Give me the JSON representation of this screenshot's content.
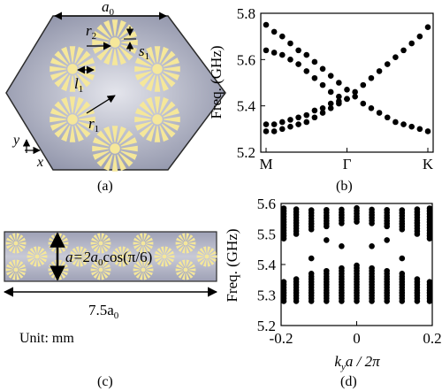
{
  "panel_labels": {
    "a": "(a)",
    "b": "(b)",
    "c": "(c)",
    "d": "(d)"
  },
  "panel_a": {
    "a0": "a",
    "a0_sub": "0",
    "r2": "r",
    "r2_sub": "2",
    "s1": "s",
    "s1_sub": "1",
    "l1": "l",
    "l1_sub": "1",
    "r1": "r",
    "r1_sub": "1",
    "axis_y": "y",
    "axis_x": "x"
  },
  "panel_c": {
    "height_label": "a=2a",
    "height_label_sub": "0",
    "height_label_tail": "cos(π/6)",
    "width_label": "7.5a",
    "width_label_sub": "0",
    "unit": "Unit: mm"
  },
  "colors": {
    "gold": "#f5e79a",
    "gray_dark": "#8e92a8",
    "gray_light": "#dcdde6",
    "dot": "#000000"
  },
  "chart_data": [
    {
      "type": "scatter",
      "panel": "b",
      "ylabel": "Freq. (GHz)",
      "categories": [
        "M",
        "Γ",
        "K"
      ],
      "ylim": [
        5.2,
        5.8
      ],
      "yticks": [
        5.2,
        5.4,
        5.6,
        5.8
      ],
      "ytick_labels": [
        "5.2",
        "5.4",
        "5.6",
        "5.8"
      ],
      "series": [
        {
          "points": [
            [
              0.0,
              5.75
            ],
            [
              0.1,
              5.72
            ],
            [
              0.2,
              5.7
            ],
            [
              0.3,
              5.67
            ],
            [
              0.4,
              5.64
            ],
            [
              0.5,
              5.62
            ],
            [
              0.6,
              5.59
            ],
            [
              0.7,
              5.56
            ],
            [
              0.8,
              5.53
            ],
            [
              0.9,
              5.5
            ],
            [
              1.0,
              5.47
            ],
            [
              1.1,
              5.44
            ],
            [
              1.2,
              5.41
            ],
            [
              1.3,
              5.39
            ],
            [
              1.4,
              5.37
            ],
            [
              1.5,
              5.35
            ],
            [
              1.6,
              5.33
            ],
            [
              1.7,
              5.32
            ],
            [
              1.8,
              5.31
            ],
            [
              1.9,
              5.3
            ],
            [
              2.0,
              5.29
            ]
          ]
        },
        {
          "points": [
            [
              0.0,
              5.64
            ],
            [
              0.1,
              5.63
            ],
            [
              0.2,
              5.62
            ],
            [
              0.3,
              5.6
            ],
            [
              0.4,
              5.58
            ],
            [
              0.5,
              5.55
            ],
            [
              0.6,
              5.52
            ],
            [
              0.7,
              5.49
            ],
            [
              0.8,
              5.46
            ],
            [
              0.9,
              5.44
            ],
            [
              1.0,
              5.43
            ]
          ]
        },
        {
          "points": [
            [
              0.0,
              5.32
            ],
            [
              0.1,
              5.32
            ],
            [
              0.2,
              5.33
            ],
            [
              0.3,
              5.34
            ],
            [
              0.4,
              5.35
            ],
            [
              0.5,
              5.36
            ],
            [
              0.6,
              5.38
            ],
            [
              0.7,
              5.39
            ],
            [
              0.8,
              5.41
            ],
            [
              0.9,
              5.42
            ],
            [
              1.0,
              5.43
            ]
          ]
        },
        {
          "points": [
            [
              0.0,
              5.29
            ],
            [
              0.1,
              5.29
            ],
            [
              0.2,
              5.3
            ],
            [
              0.3,
              5.31
            ],
            [
              0.4,
              5.32
            ],
            [
              0.5,
              5.33
            ],
            [
              0.6,
              5.35
            ],
            [
              0.7,
              5.37
            ],
            [
              0.8,
              5.39
            ],
            [
              0.9,
              5.41
            ],
            [
              1.0,
              5.43
            ],
            [
              1.1,
              5.46
            ],
            [
              1.2,
              5.49
            ],
            [
              1.3,
              5.52
            ],
            [
              1.4,
              5.55
            ],
            [
              1.5,
              5.58
            ],
            [
              1.6,
              5.61
            ],
            [
              1.7,
              5.64
            ],
            [
              1.8,
              5.67
            ],
            [
              1.9,
              5.7
            ],
            [
              2.0,
              5.74
            ]
          ]
        }
      ]
    },
    {
      "type": "scatter",
      "panel": "d",
      "ylabel": "Freq. (GHz)",
      "xlabel": "k_y a / 2π",
      "xlim": [
        -0.2,
        0.2
      ],
      "ylim": [
        5.2,
        5.6
      ],
      "xticks": [
        -0.2,
        0,
        0.2
      ],
      "xtick_labels": [
        "-0.2",
        "0",
        "0.2"
      ],
      "yticks": [
        5.2,
        5.3,
        5.4,
        5.5,
        5.6
      ],
      "ytick_labels": [
        "5.2",
        "5.3",
        "5.4",
        "5.5",
        "5.6"
      ],
      "kx": [
        -0.2,
        -0.16,
        -0.12,
        -0.08,
        -0.04,
        0.0,
        0.04,
        0.08,
        0.12,
        0.16,
        0.2
      ],
      "upper_band": {
        "min": [
          5.485,
          5.5,
          5.515,
          5.525,
          5.535,
          5.54,
          5.535,
          5.525,
          5.515,
          5.5,
          5.485
        ],
        "max": 5.585
      },
      "lower_band": {
        "min": 5.28,
        "max": [
          5.345,
          5.36,
          5.375,
          5.385,
          5.395,
          5.4,
          5.395,
          5.385,
          5.375,
          5.36,
          5.345
        ]
      },
      "edge_mode_points": [
        [
          -0.08,
          5.48
        ],
        [
          -0.04,
          5.46
        ],
        [
          0.04,
          5.46
        ],
        [
          0.08,
          5.48
        ],
        [
          -0.12,
          5.42
        ],
        [
          0.12,
          5.42
        ]
      ]
    }
  ]
}
